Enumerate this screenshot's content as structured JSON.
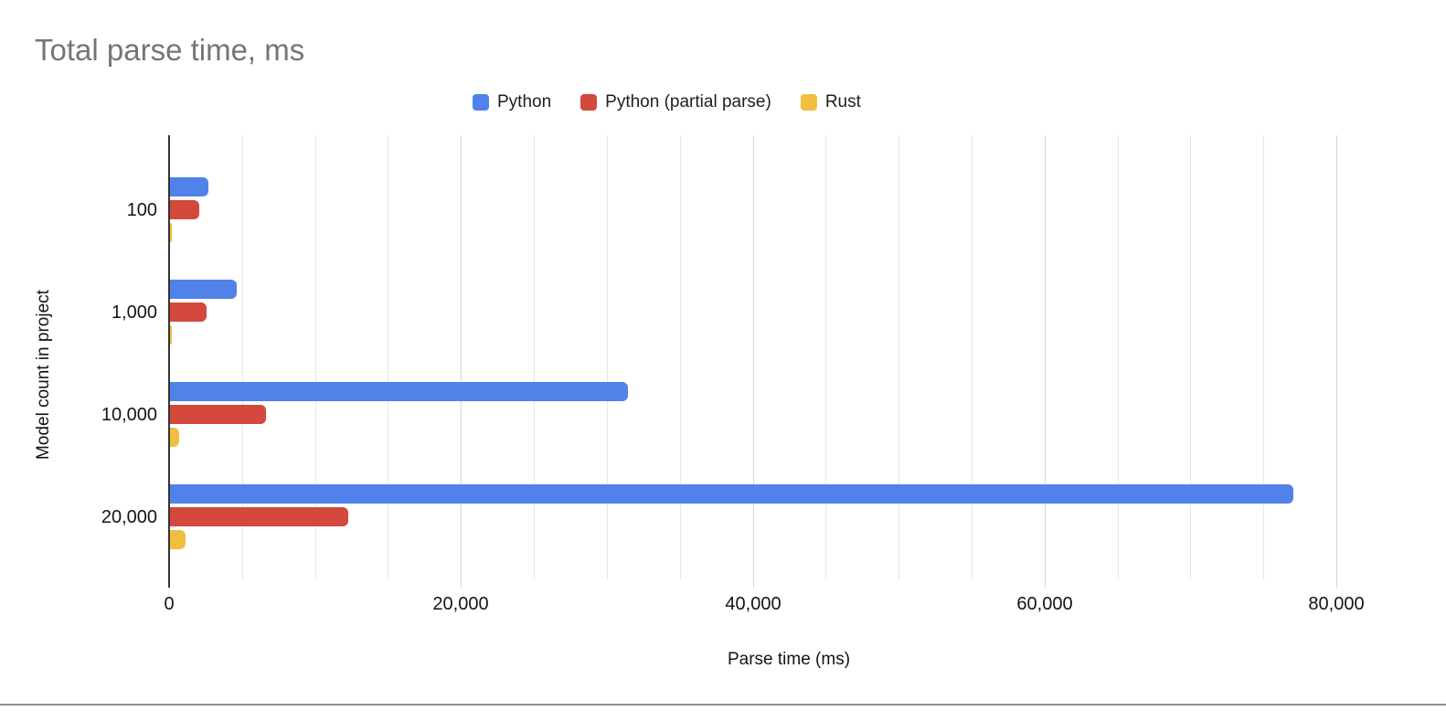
{
  "chart_data": {
    "type": "bar",
    "orientation": "horizontal",
    "title": "Total parse time, ms",
    "xlabel": "Parse time (ms)",
    "ylabel": "Model count in project",
    "categories": [
      "100",
      "1,000",
      "10,000",
      "20,000"
    ],
    "series": [
      {
        "name": "Python",
        "color": "#5082EA",
        "values": [
          2600,
          4600,
          31400,
          77000
        ]
      },
      {
        "name": "Python (partial parse)",
        "color": "#D3493D",
        "values": [
          2000,
          2500,
          6600,
          12200
        ]
      },
      {
        "name": "Rust",
        "color": "#F0BF42",
        "values": [
          120,
          150,
          620,
          1050
        ]
      }
    ],
    "xlim": [
      0,
      80000
    ],
    "x_major_ticks": [
      0,
      20000,
      40000,
      60000,
      80000
    ],
    "x_tick_labels": [
      "0",
      "20,000",
      "40,000",
      "60,000",
      "80,000"
    ],
    "x_minor_step": 5000,
    "grid": true,
    "legend_position": "top",
    "title_color": "#757575"
  }
}
